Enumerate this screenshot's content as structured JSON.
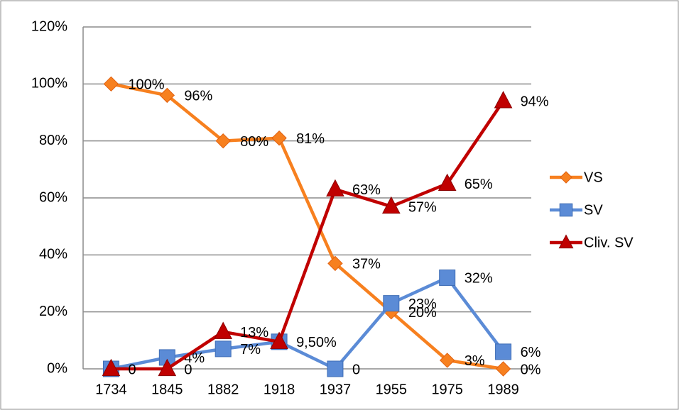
{
  "chart_data": {
    "type": "line",
    "categories": [
      "1734",
      "1845",
      "1882",
      "1918",
      "1937",
      "1955",
      "1975",
      "1989"
    ],
    "series": [
      {
        "name": "VS",
        "color": "#f7801f",
        "marker": "diamond",
        "values": [
          100,
          96,
          80,
          81,
          37,
          20,
          3,
          0
        ],
        "value_labels": [
          "100%",
          "96%",
          "80%",
          "81%",
          "37%",
          "20%",
          "3%",
          "0%"
        ]
      },
      {
        "name": "SV",
        "color": "#5b8bd6",
        "marker": "square",
        "values": [
          0,
          4,
          7,
          9.5,
          0,
          23,
          32,
          6
        ],
        "value_labels": [
          null,
          "4%",
          "7%",
          "9,50%",
          "0",
          "23%",
          "32%",
          "6%"
        ]
      },
      {
        "name": "Cliv. SV",
        "color": "#c00000",
        "marker": "triangle",
        "values": [
          0,
          0,
          13,
          9.5,
          63,
          57,
          65,
          94
        ],
        "value_labels": [
          "0",
          "0",
          "13%",
          null,
          "63%",
          "57%",
          "65%",
          "94%"
        ]
      }
    ],
    "ylim": [
      0,
      120
    ],
    "yticks": [
      {
        "value": 0,
        "label": "0%"
      },
      {
        "value": 20,
        "label": "20%"
      },
      {
        "value": 40,
        "label": "40%"
      },
      {
        "value": 60,
        "label": "60%"
      },
      {
        "value": 80,
        "label": "80%"
      },
      {
        "value": 100,
        "label": "100%"
      },
      {
        "value": 120,
        "label": "120%"
      }
    ],
    "grid": true,
    "legend": "right"
  }
}
